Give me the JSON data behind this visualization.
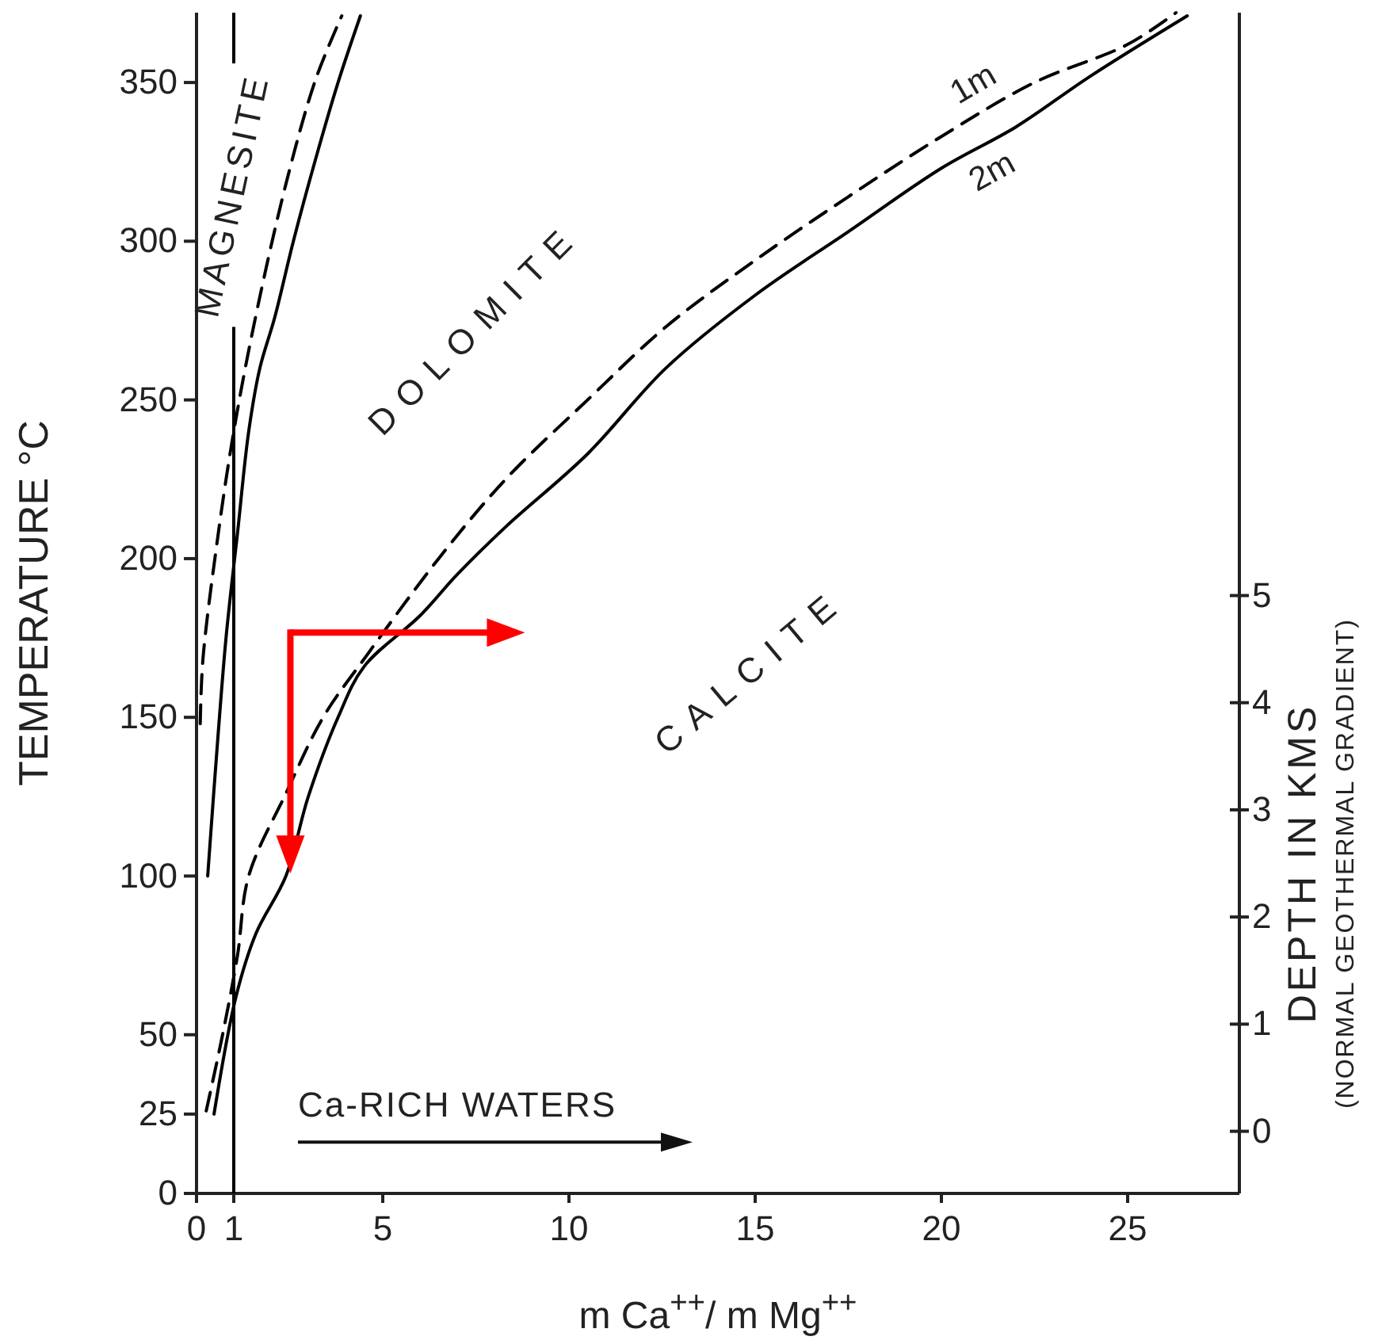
{
  "chart_data": {
    "type": "line",
    "xlabel": "m Ca$^{++}$/ m Mg$^{++}$",
    "ylabel": "TEMPERATURE °C",
    "y2label": "DEPTH IN KMS\n(NORMAL GEOTHERMAL GRADIENT)",
    "xlim": [
      0,
      28
    ],
    "xticks": [
      0,
      1,
      5,
      10,
      15,
      20,
      25
    ],
    "ylim": [
      0,
      372
    ],
    "yticks": [
      0,
      25,
      50,
      100,
      150,
      200,
      250,
      300,
      350
    ],
    "y2lim": [
      -0.58,
      10.44
    ],
    "y2ticks": [
      0,
      1,
      2,
      3,
      4,
      5
    ],
    "legend": false,
    "marker": "none",
    "series": [
      {
        "name": "1m",
        "color": "#000000",
        "line_style": "dashed",
        "x": [
          0.26,
          0.7,
          1.1,
          1.4,
          2.4,
          3.4,
          4.6,
          6.5,
          8.3,
          10.5,
          12.6,
          15,
          17.5,
          20,
          22.5,
          25,
          26.3
        ],
        "values": [
          26,
          50,
          75,
          100,
          126,
          150,
          170,
          200,
          225,
          250,
          273,
          294,
          314,
          333,
          350,
          362,
          372
        ]
      },
      {
        "name": "2m",
        "color": "#000000",
        "line_style": "solid",
        "x": [
          0.47,
          1.06,
          1.6,
          2.4,
          3.0,
          3.8,
          4.5,
          6,
          7,
          8.3,
          10.5,
          12.6,
          15,
          17.5,
          20,
          22,
          24,
          26.6
        ],
        "values": [
          25,
          62,
          82,
          100,
          125,
          150,
          166,
          182,
          195,
          210,
          233,
          260,
          283,
          303,
          323,
          336,
          352,
          371
        ]
      },
      {
        "color": "#000000",
        "line_style": "solid",
        "x": [
          0.3,
          0.55,
          0.8,
          1.1,
          1.4,
          1.7,
          2.1,
          2.6,
          3.2,
          3.8,
          4.4
        ],
        "values": [
          100,
          140,
          176,
          208,
          240,
          260,
          276,
          300,
          326,
          350,
          371
        ]
      },
      {
        "color": "#000000",
        "line_style": "dashed",
        "x": [
          0.1,
          0.17,
          0.55,
          0.97,
          1.53,
          2.4,
          3.2,
          3.9
        ],
        "values": [
          148,
          168,
          205,
          238,
          273,
          318,
          351,
          371
        ]
      }
    ],
    "ref_lines": [
      {
        "axis": "x",
        "value": 1,
        "color": "#000000",
        "line_style": "solid"
      }
    ],
    "annotations": [
      "MAGNESITE",
      "DOLOMITE",
      "CALCITE",
      "Ca-RICH WATERS"
    ]
  }
}
